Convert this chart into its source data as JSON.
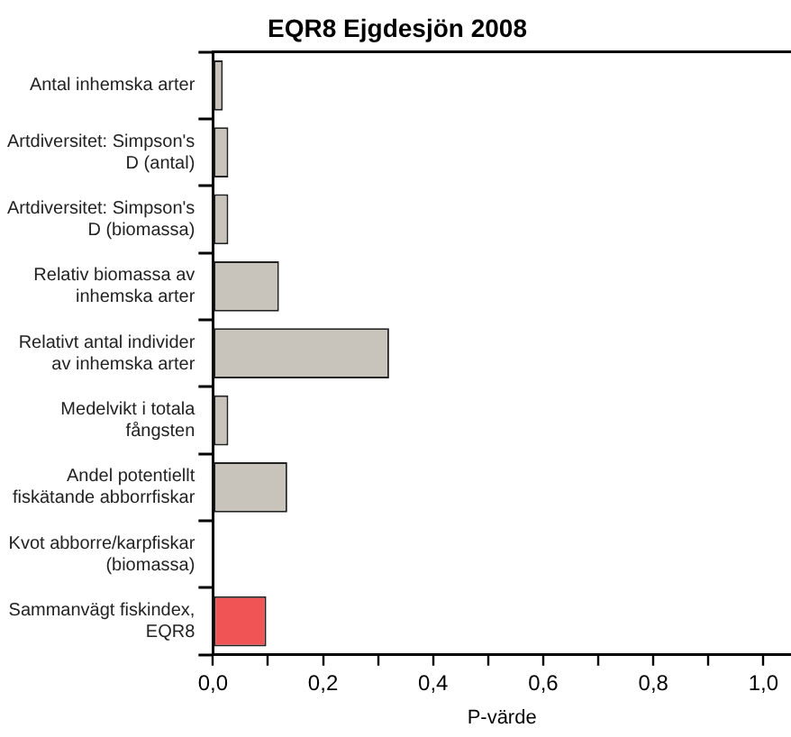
{
  "chart_data": {
    "type": "bar",
    "orientation": "horizontal",
    "title": "EQR8 Ejgdesjön 2008",
    "xlabel": "P-värde",
    "categories": [
      "Antal inhemska arter",
      "Artdiversitet: Simpson's\nD (antal)",
      "Artdiversitet: Simpson's\nD (biomassa)",
      "Relativ biomassa av\ninhemska arter",
      "Relativt antal individer\nav inhemska arter",
      "Medelvikt i totala\nfångsten",
      "Andel potentiellt\nfiskätande abborrfiskar",
      "Kvot abborre/karpfiskar\n(biomassa)",
      "Sammanvägt fiskindex,\nEQR8"
    ],
    "values": [
      0.018,
      0.028,
      0.028,
      0.12,
      0.32,
      0.028,
      0.135,
      0,
      0.097
    ],
    "colors": [
      "#c8c4bc",
      "#c8c4bc",
      "#c8c4bc",
      "#c8c4bc",
      "#c8c4bc",
      "#c8c4bc",
      "#c8c4bc",
      "#c8c4bc",
      "#f05454"
    ],
    "xlim": [
      0,
      1.05
    ],
    "xticks": [
      {
        "value": 0,
        "label": "0,0"
      },
      {
        "value": 0.1,
        "label": null
      },
      {
        "value": 0.2,
        "label": "0,2"
      },
      {
        "value": 0.3,
        "label": null
      },
      {
        "value": 0.4,
        "label": "0,4"
      },
      {
        "value": 0.5,
        "label": null
      },
      {
        "value": 0.6,
        "label": "0,6"
      },
      {
        "value": 0.7,
        "label": null
      },
      {
        "value": 0.8,
        "label": "0,8"
      },
      {
        "value": 0.9,
        "label": null
      },
      {
        "value": 1,
        "label": "1,0"
      }
    ],
    "grid": false,
    "legend": false
  }
}
